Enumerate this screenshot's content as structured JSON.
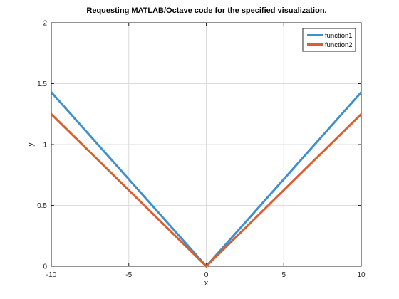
{
  "chart_data": {
    "type": "line",
    "title": "Requesting MATLAB/Octave code for the specified visualization.",
    "xlabel": "x",
    "ylabel": "y",
    "xlim": [
      -10,
      10
    ],
    "ylim": [
      0,
      2
    ],
    "xticks": [
      "-10",
      "-5",
      "0",
      "5",
      "10"
    ],
    "yticks": [
      "0",
      "0.5",
      "1",
      "1.5",
      "2"
    ],
    "grid": true,
    "legend_position": "top-right",
    "series": [
      {
        "name": "function1",
        "color": "#3f8fcf",
        "x": [
          -10,
          0,
          10
        ],
        "y": [
          1.43,
          0,
          1.43
        ]
      },
      {
        "name": "function2",
        "color": "#d95f2f",
        "x": [
          -10,
          0,
          10
        ],
        "y": [
          1.25,
          0,
          1.25
        ]
      }
    ]
  }
}
